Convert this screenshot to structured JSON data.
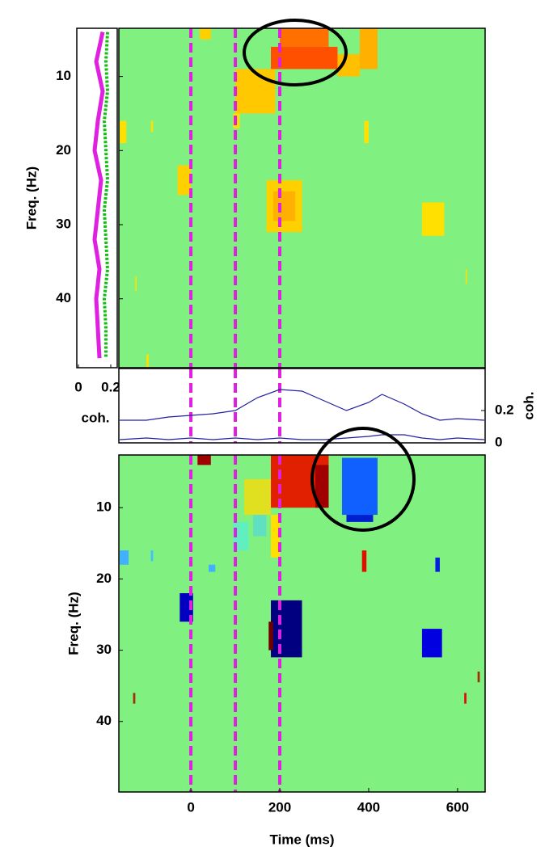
{
  "chart_data": [
    {
      "type": "heatmap",
      "ylabel": "Freq. (Hz)",
      "xlim": [
        -162,
        662
      ],
      "ylim": [
        3.5,
        49.3
      ],
      "yreverse": true,
      "yticks": [
        10,
        20,
        30,
        40
      ],
      "background": "#80f080",
      "markers": [
        0,
        100,
        200
      ],
      "marker_color": "#e020e0",
      "cells": [
        {
          "t": [
            20,
            45
          ],
          "f": [
            3.5,
            5
          ],
          "color": "#ffd000"
        },
        {
          "t": [
            200,
            310
          ],
          "f": [
            3.5,
            6
          ],
          "color": "#ff7000"
        },
        {
          "t": [
            180,
            330
          ],
          "f": [
            6,
            9
          ],
          "color": "#ff5000"
        },
        {
          "t": [
            380,
            420
          ],
          "f": [
            3.5,
            9
          ],
          "color": "#ffb000"
        },
        {
          "t": [
            330,
            380
          ],
          "f": [
            7,
            10
          ],
          "color": "#ffc000"
        },
        {
          "t": [
            100,
            190
          ],
          "f": [
            9,
            15
          ],
          "color": "#ffc800"
        },
        {
          "t": [
            -160,
            -145
          ],
          "f": [
            16,
            19
          ],
          "color": "#ffe000"
        },
        {
          "t": [
            -90,
            -85
          ],
          "f": [
            16,
            17.5
          ],
          "color": "#ffe000"
        },
        {
          "t": [
            95,
            110
          ],
          "f": [
            15,
            17
          ],
          "color": "#ffe000"
        },
        {
          "t": [
            390,
            400
          ],
          "f": [
            16,
            19
          ],
          "color": "#ffe000"
        },
        {
          "t": [
            -30,
            0
          ],
          "f": [
            22,
            26
          ],
          "color": "#ffd000"
        },
        {
          "t": [
            170,
            250
          ],
          "f": [
            24,
            31
          ],
          "color": "#ffd000"
        },
        {
          "t": [
            185,
            235
          ],
          "f": [
            25.5,
            29.5
          ],
          "color": "#ffb000"
        },
        {
          "t": [
            520,
            570
          ],
          "f": [
            27,
            31.5
          ],
          "color": "#ffe000"
        },
        {
          "t": [
            -125,
            -122
          ],
          "f": [
            37,
            39
          ],
          "color": "#ffe000"
        },
        {
          "t": [
            618,
            621
          ],
          "f": [
            36,
            38
          ],
          "color": "#ffe000"
        },
        {
          "t": [
            -100,
            -95
          ],
          "f": [
            47.5,
            49.3
          ],
          "color": "#ffe000"
        }
      ]
    },
    {
      "type": "line",
      "xlim": [
        -0.01,
        0.24
      ],
      "xticks": [
        0,
        0.2
      ],
      "xlabel": "coh.",
      "y": [
        4,
        8,
        12,
        16,
        20,
        24,
        28,
        32,
        36,
        40,
        44,
        48
      ],
      "ylim": [
        3.5,
        49.3
      ],
      "yreverse": true,
      "series": [
        {
          "color": "#e020e0",
          "values": [
            0.15,
            0.11,
            0.15,
            0.12,
            0.1,
            0.14,
            0.12,
            0.1,
            0.13,
            0.11,
            0.12,
            0.13
          ]
        },
        {
          "color": "#10c010",
          "values": [
            0.18,
            0.17,
            0.18,
            0.16,
            0.17,
            0.18,
            0.16,
            0.17,
            0.18,
            0.16,
            0.17,
            0.17
          ]
        }
      ]
    },
    {
      "type": "line",
      "xlim": [
        -162,
        662
      ],
      "x": [
        -160,
        -100,
        -50,
        0,
        50,
        100,
        150,
        200,
        250,
        300,
        350,
        400,
        430,
        480,
        520,
        560,
        600,
        660
      ],
      "y2lim": [
        0,
        0.46
      ],
      "y2ticks": [
        0,
        0.2
      ],
      "y2label": "coh.",
      "markers": [
        0,
        100,
        200
      ],
      "marker_color": "#e020e0",
      "series": [
        {
          "color": "#2020a0",
          "axis": "y2",
          "values": [
            0.14,
            0.14,
            0.16,
            0.17,
            0.18,
            0.2,
            0.28,
            0.33,
            0.32,
            0.26,
            0.2,
            0.25,
            0.3,
            0.24,
            0.18,
            0.14,
            0.15,
            0.14
          ]
        },
        {
          "color": "#2020a0",
          "axis": "y2",
          "values": [
            0.02,
            0.03,
            0.02,
            0.03,
            0.02,
            0.03,
            0.02,
            0.03,
            0.02,
            0.02,
            0.03,
            0.04,
            0.05,
            0.05,
            0.03,
            0.02,
            0.03,
            0.02
          ]
        }
      ]
    },
    {
      "type": "heatmap",
      "ylabel": "Freq. (Hz)",
      "xlabel": "Time (ms)",
      "xlim": [
        -162,
        662
      ],
      "xticks": [
        0,
        200,
        400,
        600
      ],
      "ylim": [
        2.6,
        49.9
      ],
      "yreverse": true,
      "yticks": [
        10,
        20,
        30,
        40
      ],
      "background": "#80f080",
      "markers": [
        0,
        100,
        200
      ],
      "marker_color": "#e020e0",
      "cells": [
        {
          "t": [
            15,
            45
          ],
          "f": [
            2.6,
            4
          ],
          "color": "#a00000"
        },
        {
          "t": [
            180,
            310
          ],
          "f": [
            2.6,
            10
          ],
          "color": "#e02000"
        },
        {
          "t": [
            280,
            310
          ],
          "f": [
            4,
            10
          ],
          "color": "#a00000"
        },
        {
          "t": [
            120,
            180
          ],
          "f": [
            6,
            11
          ],
          "color": "#e0e020"
        },
        {
          "t": [
            180,
            200
          ],
          "f": [
            11,
            17
          ],
          "color": "#ffe000"
        },
        {
          "t": [
            140,
            170
          ],
          "f": [
            11,
            14
          ],
          "color": "#60e0c0"
        },
        {
          "t": [
            95,
            130
          ],
          "f": [
            12,
            16
          ],
          "color": "#60f0c0"
        },
        {
          "t": [
            340,
            420
          ],
          "f": [
            3,
            11
          ],
          "color": "#1060ff"
        },
        {
          "t": [
            350,
            410
          ],
          "f": [
            11,
            12
          ],
          "color": "#0020d0"
        },
        {
          "t": [
            -160,
            -140
          ],
          "f": [
            16,
            18
          ],
          "color": "#40b0ff"
        },
        {
          "t": [
            -90,
            -85
          ],
          "f": [
            16,
            17.5
          ],
          "color": "#40c0ff"
        },
        {
          "t": [
            40,
            55
          ],
          "f": [
            18,
            19
          ],
          "color": "#40b0ff"
        },
        {
          "t": [
            385,
            395
          ],
          "f": [
            16,
            19
          ],
          "color": "#e01000"
        },
        {
          "t": [
            550,
            560
          ],
          "f": [
            17,
            19
          ],
          "color": "#0020e0"
        },
        {
          "t": [
            -25,
            5
          ],
          "f": [
            22,
            26
          ],
          "color": "#0000c0"
        },
        {
          "t": [
            180,
            250
          ],
          "f": [
            23,
            31
          ],
          "color": "#000080"
        },
        {
          "t": [
            175,
            185
          ],
          "f": [
            26,
            30
          ],
          "color": "#700000"
        },
        {
          "t": [
            520,
            565
          ],
          "f": [
            27,
            31
          ],
          "color": "#0000e0"
        },
        {
          "t": [
            645,
            650
          ],
          "f": [
            33,
            34.5
          ],
          "color": "#a03000"
        },
        {
          "t": [
            615,
            620
          ],
          "f": [
            36,
            37.5
          ],
          "color": "#e01000"
        },
        {
          "t": [
            -130,
            -125
          ],
          "f": [
            36,
            37.5
          ],
          "color": "#a03000"
        }
      ]
    }
  ]
}
